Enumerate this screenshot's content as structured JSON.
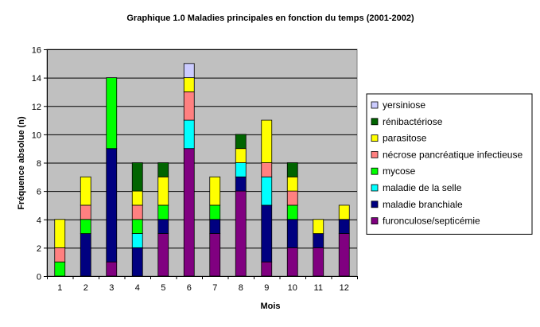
{
  "chart_data": {
    "type": "bar",
    "stacked": true,
    "title": "Graphique 1.0 Maladies principales en fonction du temps (2001-2002)",
    "xlabel": "Mois",
    "ylabel": "Fréquence absolue (n)",
    "categories": [
      "1",
      "2",
      "3",
      "4",
      "5",
      "6",
      "7",
      "8",
      "9",
      "10",
      "11",
      "12"
    ],
    "ylim": [
      0,
      16
    ],
    "yticks": [
      0,
      2,
      4,
      6,
      8,
      10,
      12,
      14,
      16
    ],
    "grid": true,
    "legend_position": "right",
    "plot_background": "#c0c0c0",
    "series": [
      {
        "name": "furonculose/septicémie",
        "color": "#800080",
        "values": [
          0,
          0,
          1,
          0,
          3,
          9,
          3,
          6,
          1,
          2,
          2,
          3
        ]
      },
      {
        "name": "maladie branchiale",
        "color": "#000080",
        "values": [
          0,
          3,
          8,
          2,
          1,
          0,
          1,
          1,
          4,
          2,
          1,
          1
        ]
      },
      {
        "name": "maladie de la selle",
        "color": "#00ffff",
        "values": [
          0,
          0,
          0,
          1,
          0,
          2,
          0,
          1,
          2,
          0,
          0,
          0
        ]
      },
      {
        "name": "mycose",
        "color": "#00ff00",
        "values": [
          1,
          1,
          5,
          1,
          1,
          0,
          1,
          0,
          0,
          1,
          0,
          0
        ]
      },
      {
        "name": "nécrose pancréatique infectieuse",
        "color": "#ff8080",
        "values": [
          1,
          1,
          0,
          1,
          0,
          2,
          0,
          0,
          1,
          1,
          0,
          0
        ]
      },
      {
        "name": "parasitose",
        "color": "#ffff00",
        "values": [
          2,
          2,
          0,
          1,
          2,
          1,
          2,
          1,
          3,
          1,
          1,
          1
        ]
      },
      {
        "name": "rénibactériose",
        "color": "#006400",
        "values": [
          0,
          0,
          0,
          2,
          1,
          0,
          0,
          1,
          0,
          1,
          0,
          0
        ]
      },
      {
        "name": "yersiniose",
        "color": "#ccccff",
        "values": [
          0,
          0,
          0,
          0,
          0,
          1,
          0,
          0,
          0,
          0,
          0,
          0
        ]
      }
    ]
  }
}
